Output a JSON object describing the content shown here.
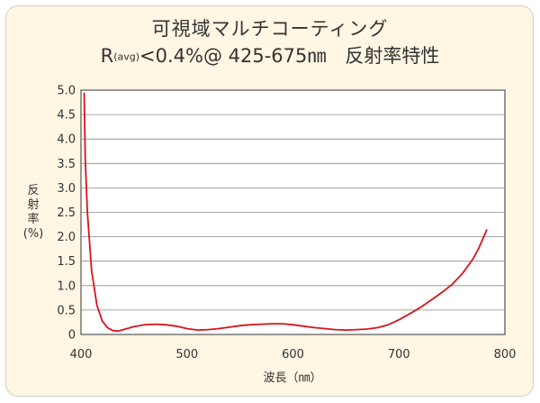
{
  "chart_data": {
    "type": "line",
    "title": "可視域マルチコーティング",
    "subtitle": {
      "prefix": "R",
      "sub": "(avg)",
      "suffix": "<0.4%@ 425-675㎚　反射率特性"
    },
    "xlabel": "波長（㎚）",
    "ylabel": [
      "反",
      "射",
      "率",
      "(%)"
    ],
    "xlim": [
      400,
      800
    ],
    "ylim": [
      0,
      5.0
    ],
    "x_ticks": [
      "400",
      "500",
      "600",
      "700",
      "800"
    ],
    "y_ticks": [
      "0",
      "0.5",
      "1.0",
      "1.5",
      "2.0",
      "2.5",
      "3.0",
      "3.5",
      "4.0",
      "4.5",
      "5.0"
    ],
    "grid": "horizontal",
    "series": [
      {
        "color": "#d7141b",
        "points": [
          [
            403,
            4.95
          ],
          [
            404,
            3.6
          ],
          [
            406,
            2.5
          ],
          [
            410,
            1.3
          ],
          [
            415,
            0.6
          ],
          [
            420,
            0.28
          ],
          [
            425,
            0.14
          ],
          [
            430,
            0.08
          ],
          [
            435,
            0.07
          ],
          [
            440,
            0.1
          ],
          [
            450,
            0.16
          ],
          [
            460,
            0.2
          ],
          [
            470,
            0.21
          ],
          [
            480,
            0.2
          ],
          [
            490,
            0.17
          ],
          [
            500,
            0.12
          ],
          [
            510,
            0.09
          ],
          [
            520,
            0.1
          ],
          [
            530,
            0.12
          ],
          [
            540,
            0.15
          ],
          [
            550,
            0.18
          ],
          [
            560,
            0.2
          ],
          [
            570,
            0.21
          ],
          [
            580,
            0.22
          ],
          [
            590,
            0.22
          ],
          [
            600,
            0.2
          ],
          [
            610,
            0.17
          ],
          [
            620,
            0.14
          ],
          [
            630,
            0.12
          ],
          [
            640,
            0.1
          ],
          [
            650,
            0.09
          ],
          [
            660,
            0.1
          ],
          [
            670,
            0.11
          ],
          [
            680,
            0.14
          ],
          [
            690,
            0.2
          ],
          [
            700,
            0.3
          ],
          [
            710,
            0.42
          ],
          [
            720,
            0.55
          ],
          [
            730,
            0.7
          ],
          [
            740,
            0.85
          ],
          [
            750,
            1.02
          ],
          [
            760,
            1.25
          ],
          [
            770,
            1.55
          ],
          [
            775,
            1.75
          ],
          [
            780,
            2.0
          ],
          [
            783,
            2.15
          ]
        ]
      }
    ]
  }
}
